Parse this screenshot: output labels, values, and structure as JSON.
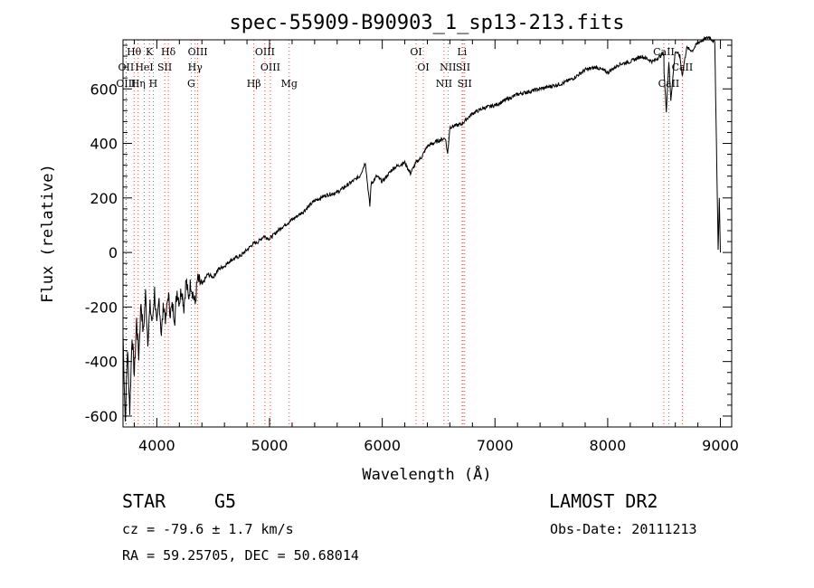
{
  "chart_data": {
    "type": "line",
    "title": "spec-55909-B90903_1_sp13-213.fits",
    "xlabel": "Wavelength (Å)",
    "ylabel": "Flux (relative)",
    "xlim": [
      3700,
      9100
    ],
    "ylim": [
      -640,
      780
    ],
    "xticks": [
      4000,
      5000,
      6000,
      7000,
      8000,
      9000
    ],
    "yticks": [
      -600,
      -400,
      -200,
      0,
      200,
      400,
      600
    ],
    "series": [
      {
        "name": "spectrum",
        "x": [
          3700,
          3720,
          3740,
          3760,
          3780,
          3800,
          3820,
          3840,
          3860,
          3880,
          3900,
          3920,
          3940,
          3960,
          3980,
          4000,
          4020,
          4040,
          4060,
          4080,
          4100,
          4120,
          4140,
          4160,
          4180,
          4200,
          4220,
          4240,
          4260,
          4280,
          4300,
          4320,
          4340,
          4360,
          4400,
          4450,
          4500,
          4550,
          4600,
          4650,
          4700,
          4750,
          4800,
          4850,
          4900,
          4950,
          5000,
          5100,
          5200,
          5300,
          5400,
          5500,
          5600,
          5700,
          5800,
          5850,
          5890,
          5900,
          5950,
          6000,
          6100,
          6200,
          6250,
          6300,
          6350,
          6400,
          6500,
          6560,
          6580,
          6600,
          6700,
          6800,
          6900,
          7000,
          7100,
          7200,
          7300,
          7400,
          7500,
          7600,
          7700,
          7800,
          7900,
          8000,
          8100,
          8200,
          8300,
          8400,
          8498,
          8500,
          8520,
          8542,
          8560,
          8600,
          8640,
          8662,
          8680,
          8700,
          8750,
          8800,
          8850,
          8900,
          8950,
          8980,
          8990,
          9000
        ],
        "values": [
          -300,
          -620,
          -350,
          -580,
          -300,
          -450,
          -250,
          -380,
          -180,
          -300,
          -150,
          -320,
          -200,
          -260,
          -140,
          -280,
          -170,
          -300,
          -190,
          -250,
          -150,
          -220,
          -200,
          -240,
          -140,
          -180,
          -130,
          -200,
          -100,
          -170,
          -110,
          -150,
          -190,
          -100,
          -120,
          -80,
          -90,
          -60,
          -50,
          -30,
          -20,
          -10,
          10,
          30,
          40,
          60,
          50,
          90,
          120,
          150,
          190,
          210,
          220,
          250,
          280,
          330,
          170,
          250,
          280,
          260,
          310,
          330,
          290,
          330,
          350,
          390,
          410,
          420,
          360,
          460,
          470,
          510,
          530,
          540,
          560,
          580,
          590,
          600,
          610,
          620,
          640,
          670,
          680,
          660,
          690,
          700,
          720,
          700,
          730,
          660,
          520,
          700,
          560,
          740,
          720,
          650,
          700,
          750,
          740,
          770,
          780,
          790,
          770,
          10,
          200,
          0
        ]
      }
    ],
    "line_markers": [
      {
        "label": "Hθ",
        "x": 3798,
        "row": 0
      },
      {
        "label": "K",
        "x": 3934,
        "row": 0
      },
      {
        "label": "Hδ",
        "x": 4102,
        "row": 0
      },
      {
        "label": "OIII",
        "x": 4363,
        "row": 0
      },
      {
        "label": "OIII",
        "x": 4959,
        "row": 0
      },
      {
        "label": "OI",
        "x": 6300,
        "row": 0
      },
      {
        "label": "Li",
        "x": 6708,
        "row": 0
      },
      {
        "label": "CaII",
        "x": 8498,
        "row": 0
      },
      {
        "label": "OII",
        "x": 3727,
        "row": 1
      },
      {
        "label": "HeI",
        "x": 3889,
        "row": 1
      },
      {
        "label": "SII",
        "x": 4070,
        "row": 1
      },
      {
        "label": "Hγ",
        "x": 4340,
        "row": 1
      },
      {
        "label": "OIII",
        "x": 5007,
        "row": 1
      },
      {
        "label": "OI",
        "x": 6364,
        "row": 1
      },
      {
        "label": "NII",
        "x": 6583,
        "row": 1
      },
      {
        "label": "SII",
        "x": 6717,
        "row": 1
      },
      {
        "label": "CaII",
        "x": 8662,
        "row": 1
      },
      {
        "label": "OIII",
        "x": 3727,
        "row": 2
      },
      {
        "label": "Hη",
        "x": 3835,
        "row": 2
      },
      {
        "label": "H",
        "x": 3968,
        "row": 2
      },
      {
        "label": "G",
        "x": 4305,
        "row": 2
      },
      {
        "label": "Hβ",
        "x": 4861,
        "row": 2
      },
      {
        "label": "Mg",
        "x": 5175,
        "row": 2
      },
      {
        "label": "NII",
        "x": 6548,
        "row": 2
      },
      {
        "label": "SII",
        "x": 6731,
        "row": 2
      },
      {
        "label": "CaII",
        "x": 8542,
        "row": 2
      }
    ],
    "grid": false,
    "legend": "none"
  },
  "info": {
    "object_class": "STAR",
    "subclass": "G5",
    "survey": "LAMOST DR2",
    "cz": "cz = -79.6 ± 1.7 km/s",
    "obs_date": "Obs-Date: 20111213",
    "coords": "RA =  59.25705, DEC =  50.68014"
  }
}
